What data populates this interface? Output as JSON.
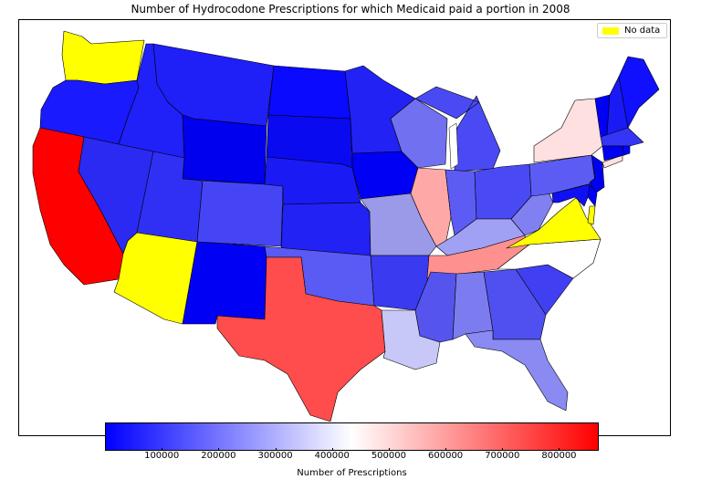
{
  "title": "Number of Hydrocodone Prescriptions for which Medicaid paid a portion in 2008",
  "legend": {
    "label": "No data",
    "color": "#ffff00"
  },
  "colorbar": {
    "label": "Number of Prescriptions",
    "tick_labels": [
      "100000",
      "200000",
      "300000",
      "400000",
      "500000",
      "600000",
      "700000",
      "800000"
    ],
    "range": [
      0,
      870000
    ],
    "colors": [
      "#0000ff",
      "#ffffff",
      "#ff0000"
    ]
  },
  "states": [
    {
      "id": "WA",
      "color": "#ffff00"
    },
    {
      "id": "OR",
      "color": "#1a1aff"
    },
    {
      "id": "CA",
      "color": "#ff0000"
    },
    {
      "id": "NV",
      "color": "#2a2af2"
    },
    {
      "id": "ID",
      "color": "#2020f8"
    },
    {
      "id": "MT",
      "color": "#1f1ff8"
    },
    {
      "id": "WY",
      "color": "#0000ee"
    },
    {
      "id": "UT",
      "color": "#3030f5"
    },
    {
      "id": "AZ",
      "color": "#ffff00"
    },
    {
      "id": "CO",
      "color": "#4545f5"
    },
    {
      "id": "NM",
      "color": "#0000f5"
    },
    {
      "id": "ND",
      "color": "#0a0aff"
    },
    {
      "id": "SD",
      "color": "#0a0af0"
    },
    {
      "id": "NE",
      "color": "#1a1af5"
    },
    {
      "id": "KS",
      "color": "#2222f5"
    },
    {
      "id": "OK",
      "color": "#5a5af5"
    },
    {
      "id": "TX",
      "color": "#ff4c4c"
    },
    {
      "id": "MN",
      "color": "#2222f5"
    },
    {
      "id": "IA",
      "color": "#0000f5"
    },
    {
      "id": "MO",
      "color": "#9a9ae8"
    },
    {
      "id": "AR",
      "color": "#3a3af0"
    },
    {
      "id": "LA",
      "color": "#c8c8f8"
    },
    {
      "id": "WI",
      "color": "#7070f0"
    },
    {
      "id": "IL",
      "color": "#ffa8a8"
    },
    {
      "id": "MI",
      "color": "#4a4af5"
    },
    {
      "id": "IN",
      "color": "#5c5cf5"
    },
    {
      "id": "KY",
      "color": "#a0a0f5"
    },
    {
      "id": "TN",
      "color": "#ff9090"
    },
    {
      "id": "MS",
      "color": "#5555ee"
    },
    {
      "id": "AL",
      "color": "#7c7cf0"
    },
    {
      "id": "GA",
      "color": "#5050f0"
    },
    {
      "id": "FL",
      "color": "#8a8af2"
    },
    {
      "id": "SC",
      "color": "#4040f2"
    },
    {
      "id": "NC",
      "color": "#ffffff"
    },
    {
      "id": "VA",
      "color": "#ffff00"
    },
    {
      "id": "WV",
      "color": "#8080f0"
    },
    {
      "id": "OH",
      "color": "#4a4af5"
    },
    {
      "id": "PA",
      "color": "#5c5cf5"
    },
    {
      "id": "NY",
      "color": "#ffe0e0"
    },
    {
      "id": "VT",
      "color": "#0000f5"
    },
    {
      "id": "NH",
      "color": "#1a1af5"
    },
    {
      "id": "ME",
      "color": "#1010ff"
    },
    {
      "id": "MA",
      "color": "#3535f5"
    },
    {
      "id": "CT",
      "color": "#0000f0"
    },
    {
      "id": "RI",
      "color": "#0000ff"
    },
    {
      "id": "NJ",
      "color": "#0000f0"
    },
    {
      "id": "DE",
      "color": "#0000ff"
    },
    {
      "id": "MD",
      "color": "#1010f5"
    },
    {
      "id": "DC",
      "color": "#ffff00"
    }
  ]
}
